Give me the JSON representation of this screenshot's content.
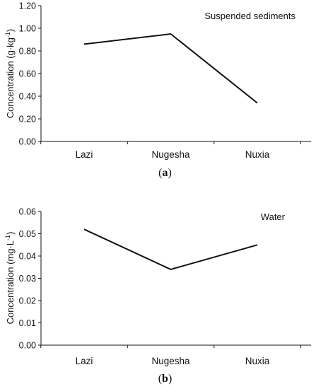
{
  "chart_data": [
    {
      "type": "line",
      "panel_label": "a",
      "annotation": "Suspended sediments",
      "ylabel": "Concentration  (g·kg",
      "ylabel_superscript": "-1",
      "ylabel_close": ")",
      "categories": [
        "Lazi",
        "Nugesha",
        "Nuxia"
      ],
      "values": [
        0.86,
        0.95,
        0.34
      ],
      "ylim": [
        0,
        1.2
      ],
      "yticks": [
        "0.00",
        "0.20",
        "0.40",
        "0.60",
        "0.80",
        "1.00",
        "1.20"
      ],
      "grid": false,
      "color": "#111111"
    },
    {
      "type": "line",
      "panel_label": "b",
      "annotation": "Water",
      "ylabel": "Concentration  (mg·L",
      "ylabel_superscript": "-1",
      "ylabel_close": ")",
      "categories": [
        "Lazi",
        "Nugesha",
        "Nuxia"
      ],
      "values": [
        0.052,
        0.034,
        0.045
      ],
      "ylim": [
        0,
        0.06
      ],
      "yticks": [
        "0.00",
        "0.01",
        "0.02",
        "0.03",
        "0.04",
        "0.05",
        "0.06"
      ],
      "grid": false,
      "color": "#111111"
    }
  ]
}
